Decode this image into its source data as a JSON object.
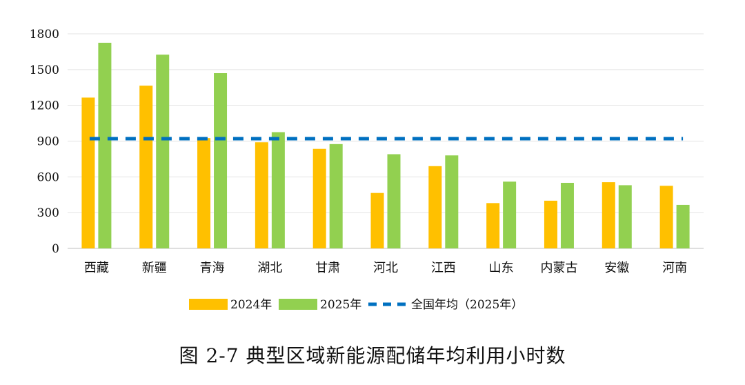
{
  "caption": "图 2-7 典型区域新能源配储年均利用小时数",
  "chart_data": {
    "type": "bar",
    "categories": [
      "西藏",
      "新疆",
      "青海",
      "湖北",
      "甘肃",
      "河北",
      "江西",
      "山东",
      "内蒙古",
      "安徽",
      "河南"
    ],
    "series": [
      {
        "name": "2024年",
        "color": "#FFC000",
        "values": [
          1265,
          1365,
          925,
          890,
          835,
          465,
          690,
          380,
          400,
          555,
          525
        ]
      },
      {
        "name": "2025年",
        "color": "#92D050",
        "values": [
          1725,
          1625,
          1470,
          975,
          875,
          790,
          780,
          560,
          550,
          530,
          365
        ]
      }
    ],
    "reference_line": {
      "name": "全国年均（2025年）",
      "value": 920,
      "color": "#0070C0",
      "style": "dashed"
    },
    "ylim": [
      0,
      1800
    ],
    "yticks": [
      "0",
      "300",
      "600",
      "900",
      "1200",
      "1500",
      "1800"
    ],
    "grid": true,
    "legend": "bottom"
  }
}
